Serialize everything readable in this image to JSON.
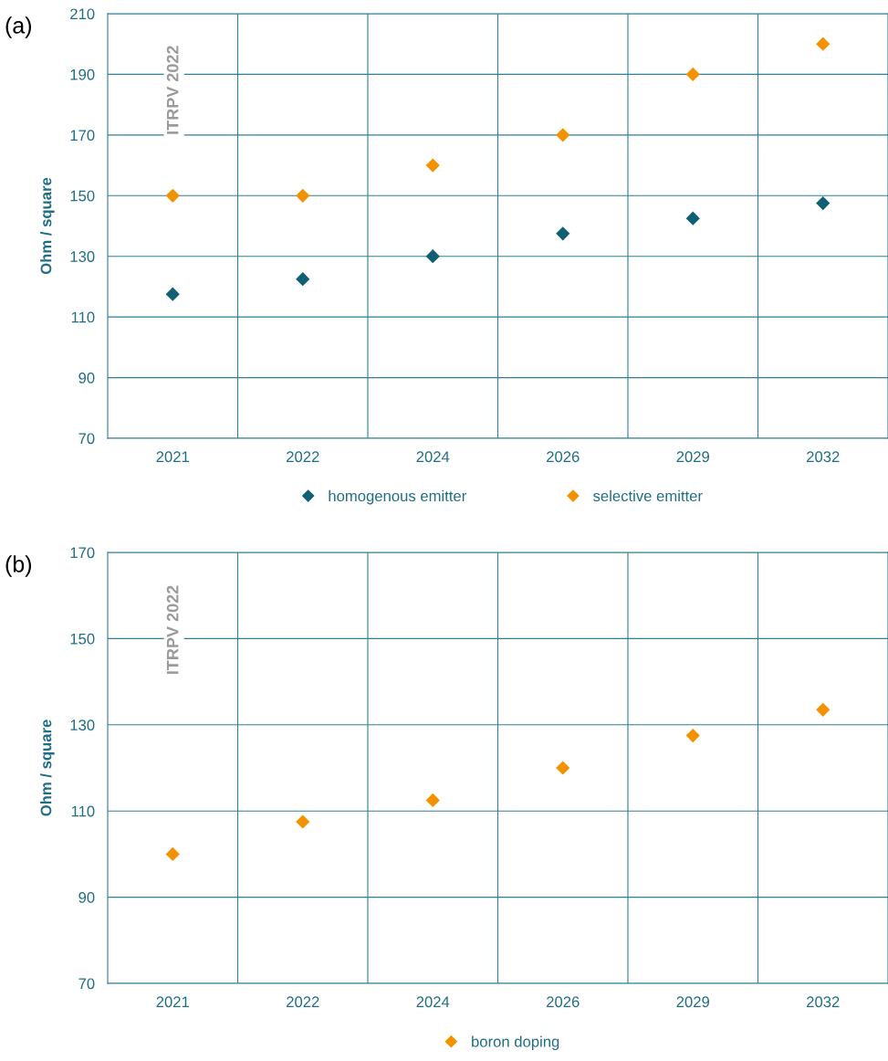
{
  "chart_data": [
    {
      "type": "scatter",
      "ylabel": "Ohm / square",
      "categories": [
        "2021",
        "2022",
        "2024",
        "2026",
        "2029",
        "2032"
      ],
      "series": [
        {
          "name": "homogenous emitter",
          "color": "#0f5f75",
          "values": [
            117.5,
            122.5,
            130,
            137.5,
            142.5,
            147.5
          ]
        },
        {
          "name": "selective emitter",
          "color": "#f39200",
          "values": [
            150,
            150,
            160,
            170,
            190,
            200
          ]
        }
      ],
      "ylim": [
        70,
        210
      ],
      "yticks": [
        70,
        90,
        110,
        130,
        150,
        170,
        190,
        210
      ],
      "grid": true,
      "legend": "bottom",
      "marker": "diamond",
      "annotations": [
        "(a)",
        "ITRPV 2022"
      ]
    },
    {
      "type": "scatter",
      "ylabel": "Ohm / square",
      "categories": [
        "2021",
        "2022",
        "2024",
        "2026",
        "2029",
        "2032"
      ],
      "series": [
        {
          "name": "boron doping",
          "color": "#f39200",
          "values": [
            100,
            107.5,
            112.5,
            120,
            127.5,
            133.5
          ]
        }
      ],
      "ylim": [
        70,
        170
      ],
      "yticks": [
        70,
        90,
        110,
        130,
        150,
        170
      ],
      "grid": true,
      "legend": "bottom",
      "marker": "diamond",
      "annotations": [
        "(b)",
        "ITRPV 2022"
      ]
    }
  ]
}
